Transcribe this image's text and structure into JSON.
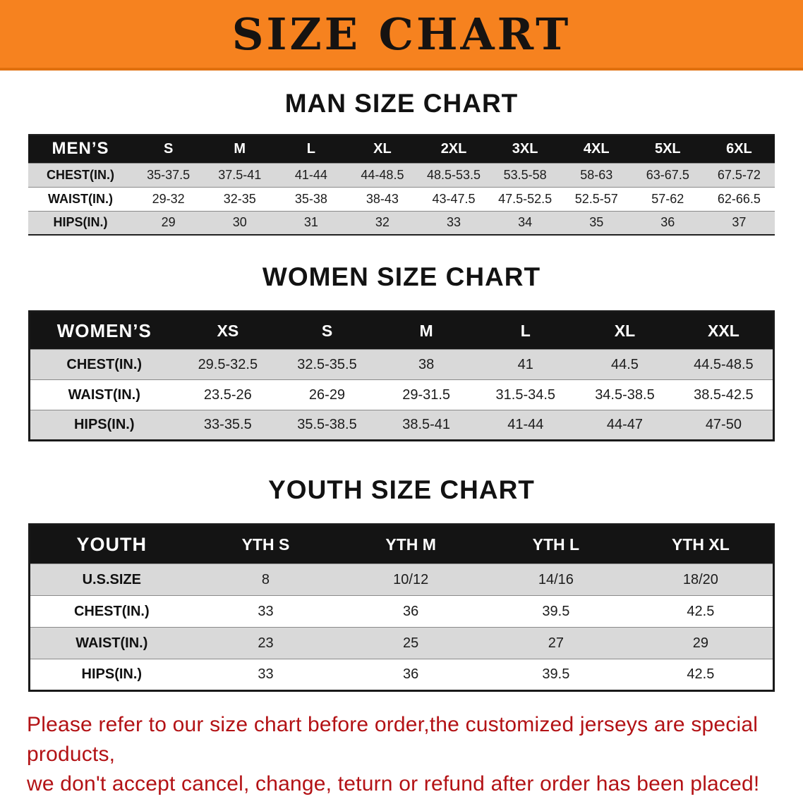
{
  "banner": {
    "title": "SIZE CHART",
    "bg_color": "#f6821f",
    "text_color": "#161311"
  },
  "colors": {
    "table_header_bg": "#141414",
    "row_stripe": "#d9d9d9",
    "disclaimer_red": "#b31215"
  },
  "sections": [
    {
      "heading": "MAN SIZE CHART",
      "table": {
        "corner": "MEN’S",
        "columns": [
          "S",
          "M",
          "L",
          "XL",
          "2XL",
          "3XL",
          "4XL",
          "5XL",
          "6XL"
        ],
        "rows": [
          {
            "label": "CHEST(IN.)",
            "values": [
              "35-37.5",
              "37.5-41",
              "41-44",
              "44-48.5",
              "48.5-53.5",
              "53.5-58",
              "58-63",
              "63-67.5",
              "67.5-72"
            ]
          },
          {
            "label": "WAIST(IN.)",
            "values": [
              "29-32",
              "32-35",
              "35-38",
              "38-43",
              "43-47.5",
              "47.5-52.5",
              "52.5-57",
              "57-62",
              "62-66.5"
            ]
          },
          {
            "label": "HIPS(IN.)",
            "values": [
              "29",
              "30",
              "31",
              "32",
              "33",
              "34",
              "35",
              "36",
              "37"
            ]
          }
        ]
      }
    },
    {
      "heading": "WOMEN SIZE CHART",
      "table": {
        "corner": "WOMEN’S",
        "columns": [
          "XS",
          "S",
          "M",
          "L",
          "XL",
          "XXL"
        ],
        "rows": [
          {
            "label": "CHEST(IN.)",
            "values": [
              "29.5-32.5",
              "32.5-35.5",
              "38",
              "41",
              "44.5",
              "44.5-48.5"
            ]
          },
          {
            "label": "WAIST(IN.)",
            "values": [
              "23.5-26",
              "26-29",
              "29-31.5",
              "31.5-34.5",
              "34.5-38.5",
              "38.5-42.5"
            ]
          },
          {
            "label": "HIPS(IN.)",
            "values": [
              "33-35.5",
              "35.5-38.5",
              "38.5-41",
              "41-44",
              "44-47",
              "47-50"
            ]
          }
        ]
      }
    },
    {
      "heading": "YOUTH SIZE CHART",
      "table": {
        "corner": "YOUTH",
        "columns": [
          "YTH S",
          "YTH M",
          "YTH L",
          "YTH XL"
        ],
        "rows": [
          {
            "label": "U.S.SIZE",
            "values": [
              "8",
              "10/12",
              "14/16",
              "18/20"
            ]
          },
          {
            "label": "CHEST(IN.)",
            "values": [
              "33",
              "36",
              "39.5",
              "42.5"
            ]
          },
          {
            "label": "WAIST(IN.)",
            "values": [
              "23",
              "25",
              "27",
              "29"
            ]
          },
          {
            "label": "HIPS(IN.)",
            "values": [
              "33",
              "36",
              "39.5",
              "42.5"
            ]
          }
        ]
      }
    }
  ],
  "disclaimer": {
    "line1": "Please refer to our size chart before order,the customized jerseys are special products,",
    "line2": "we don't accept cancel, change, teturn or refund after order has been placed!"
  }
}
